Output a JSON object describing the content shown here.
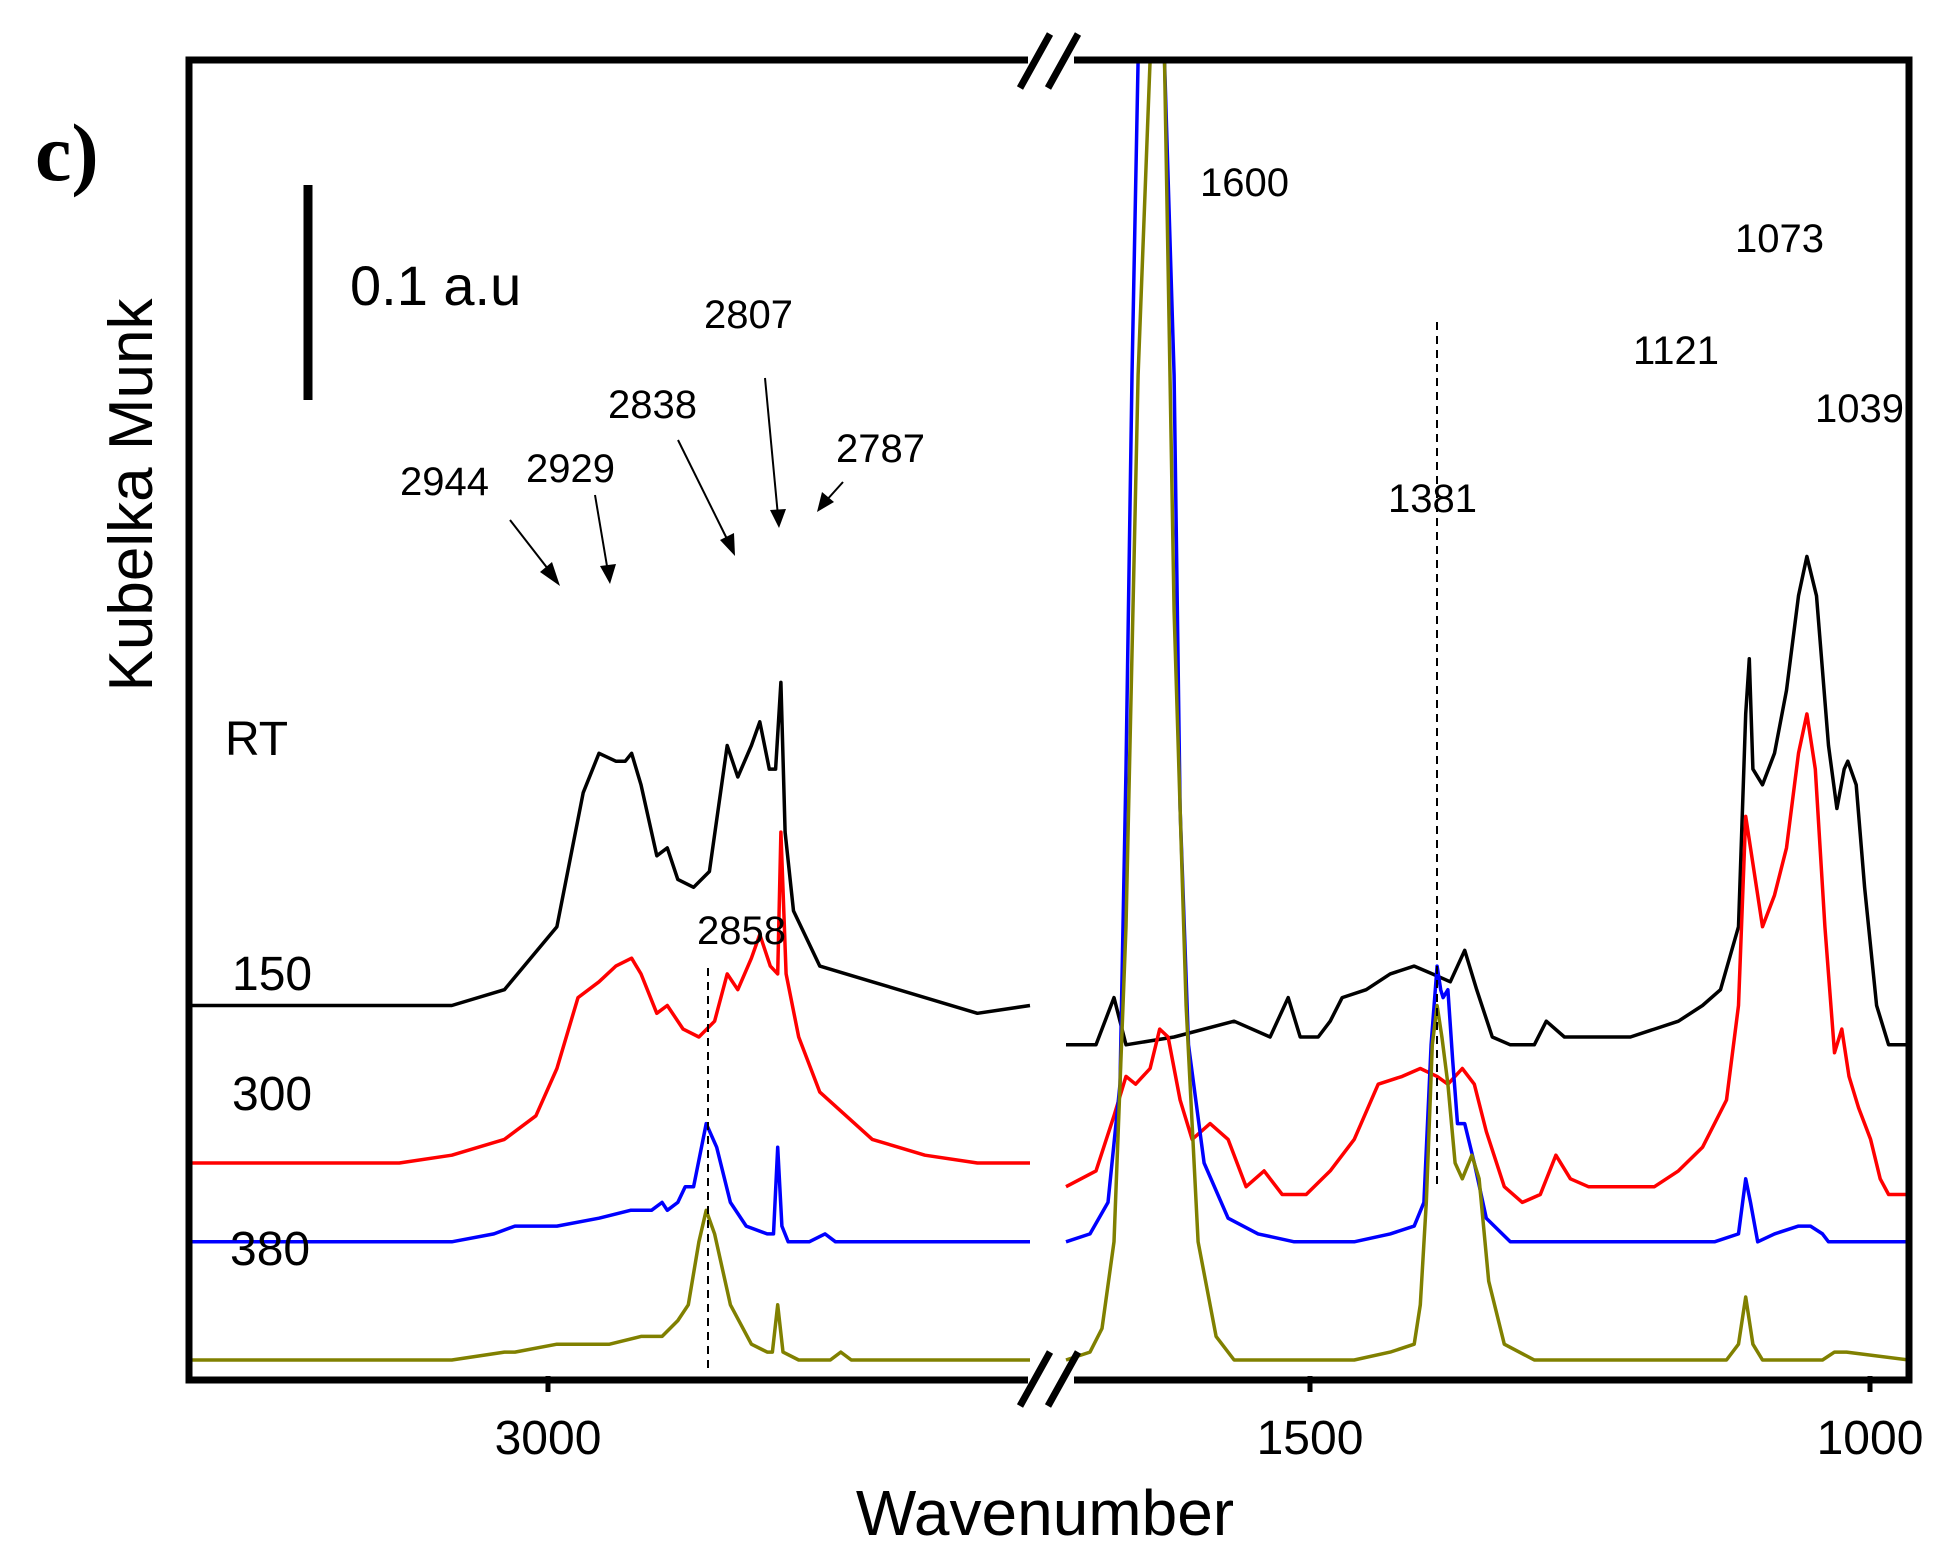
{
  "chart_data": {
    "type": "line",
    "panel_label": "c)",
    "xlabel": "Wavenumber",
    "ylabel": "Kubelka Munk",
    "scale_bar_label": "0.1 a.u",
    "x_tick_labels": [
      "3000",
      "1500",
      "1000"
    ],
    "x_ranges": {
      "left": [
        3350,
        2550
      ],
      "right": [
        1690,
        988
      ]
    },
    "y_range": [
      -0.45,
      1.2
    ],
    "axis_break": true,
    "series": [
      {
        "name": "RT",
        "color": "#000000",
        "baseline": 0.0,
        "left": [
          [
            3350,
            0
          ],
          [
            3100,
            0
          ],
          [
            3050,
            0.02
          ],
          [
            3000,
            0.1
          ],
          [
            2975,
            0.27
          ],
          [
            2960,
            0.32
          ],
          [
            2944,
            0.31
          ],
          [
            2935,
            0.31
          ],
          [
            2929,
            0.32
          ],
          [
            2920,
            0.28
          ],
          [
            2905,
            0.19
          ],
          [
            2895,
            0.2
          ],
          [
            2885,
            0.16
          ],
          [
            2870,
            0.15
          ],
          [
            2855,
            0.17
          ],
          [
            2838,
            0.33
          ],
          [
            2828,
            0.29
          ],
          [
            2815,
            0.33
          ],
          [
            2807,
            0.36
          ],
          [
            2798,
            0.3
          ],
          [
            2792,
            0.3
          ],
          [
            2787,
            0.41
          ],
          [
            2783,
            0.22
          ],
          [
            2775,
            0.12
          ],
          [
            2750,
            0.05
          ],
          [
            2700,
            0.03
          ],
          [
            2600,
            -0.01
          ],
          [
            2550,
            0
          ]
        ],
        "right": [
          [
            1690,
            -0.05
          ],
          [
            1665,
            -0.05
          ],
          [
            1650,
            0.01
          ],
          [
            1640,
            -0.05
          ],
          [
            1600,
            -0.04
          ],
          [
            1550,
            -0.02
          ],
          [
            1520,
            -0.04
          ],
          [
            1505,
            0.01
          ],
          [
            1495,
            -0.04
          ],
          [
            1480,
            -0.04
          ],
          [
            1470,
            -0.02
          ],
          [
            1460,
            0.01
          ],
          [
            1440,
            0.02
          ],
          [
            1420,
            0.04
          ],
          [
            1400,
            0.05
          ],
          [
            1385,
            0.04
          ],
          [
            1370,
            0.03
          ],
          [
            1358,
            0.07
          ],
          [
            1348,
            0.02
          ],
          [
            1335,
            -0.04
          ],
          [
            1320,
            -0.05
          ],
          [
            1300,
            -0.05
          ],
          [
            1290,
            -0.02
          ],
          [
            1275,
            -0.04
          ],
          [
            1250,
            -0.04
          ],
          [
            1220,
            -0.04
          ],
          [
            1200,
            -0.03
          ],
          [
            1180,
            -0.02
          ],
          [
            1160,
            0.0
          ],
          [
            1145,
            0.02
          ],
          [
            1130,
            0.1
          ],
          [
            1124,
            0.37
          ],
          [
            1121,
            0.44
          ],
          [
            1118,
            0.3
          ],
          [
            1110,
            0.28
          ],
          [
            1100,
            0.32
          ],
          [
            1090,
            0.4
          ],
          [
            1080,
            0.52
          ],
          [
            1073,
            0.57
          ],
          [
            1065,
            0.52
          ],
          [
            1055,
            0.33
          ],
          [
            1048,
            0.25
          ],
          [
            1042,
            0.3
          ],
          [
            1039,
            0.31
          ],
          [
            1032,
            0.28
          ],
          [
            1025,
            0.15
          ],
          [
            1015,
            0.0
          ],
          [
            1005,
            -0.05
          ],
          [
            988,
            -0.05
          ]
        ]
      },
      {
        "name": "150",
        "color": "#ff0000",
        "baseline": -0.2,
        "left": [
          [
            3350,
            -0.2
          ],
          [
            3150,
            -0.2
          ],
          [
            3100,
            -0.19
          ],
          [
            3050,
            -0.17
          ],
          [
            3020,
            -0.14
          ],
          [
            3000,
            -0.08
          ],
          [
            2980,
            0.01
          ],
          [
            2960,
            0.03
          ],
          [
            2944,
            0.05
          ],
          [
            2929,
            0.06
          ],
          [
            2920,
            0.04
          ],
          [
            2905,
            -0.01
          ],
          [
            2895,
            0.0
          ],
          [
            2880,
            -0.03
          ],
          [
            2865,
            -0.04
          ],
          [
            2850,
            -0.02
          ],
          [
            2838,
            0.04
          ],
          [
            2828,
            0.02
          ],
          [
            2815,
            0.06
          ],
          [
            2807,
            0.09
          ],
          [
            2797,
            0.05
          ],
          [
            2790,
            0.04
          ],
          [
            2787,
            0.22
          ],
          [
            2782,
            0.04
          ],
          [
            2770,
            -0.04
          ],
          [
            2750,
            -0.11
          ],
          [
            2700,
            -0.17
          ],
          [
            2650,
            -0.19
          ],
          [
            2600,
            -0.2
          ],
          [
            2550,
            -0.2
          ]
        ],
        "right": [
          [
            1690,
            -0.23
          ],
          [
            1665,
            -0.21
          ],
          [
            1650,
            -0.14
          ],
          [
            1640,
            -0.09
          ],
          [
            1632,
            -0.1
          ],
          [
            1620,
            -0.08
          ],
          [
            1612,
            -0.03
          ],
          [
            1605,
            -0.04
          ],
          [
            1595,
            -0.12
          ],
          [
            1585,
            -0.17
          ],
          [
            1570,
            -0.15
          ],
          [
            1555,
            -0.17
          ],
          [
            1540,
            -0.23
          ],
          [
            1525,
            -0.21
          ],
          [
            1510,
            -0.24
          ],
          [
            1490,
            -0.24
          ],
          [
            1470,
            -0.21
          ],
          [
            1450,
            -0.17
          ],
          [
            1430,
            -0.1
          ],
          [
            1410,
            -0.09
          ],
          [
            1395,
            -0.08
          ],
          [
            1381,
            -0.09
          ],
          [
            1372,
            -0.1
          ],
          [
            1360,
            -0.08
          ],
          [
            1350,
            -0.1
          ],
          [
            1340,
            -0.16
          ],
          [
            1325,
            -0.23
          ],
          [
            1310,
            -0.25
          ],
          [
            1295,
            -0.24
          ],
          [
            1282,
            -0.19
          ],
          [
            1270,
            -0.22
          ],
          [
            1255,
            -0.23
          ],
          [
            1230,
            -0.23
          ],
          [
            1200,
            -0.23
          ],
          [
            1180,
            -0.21
          ],
          [
            1160,
            -0.18
          ],
          [
            1140,
            -0.12
          ],
          [
            1130,
            0.0
          ],
          [
            1124,
            0.24
          ],
          [
            1120,
            0.2
          ],
          [
            1110,
            0.1
          ],
          [
            1100,
            0.14
          ],
          [
            1090,
            0.2
          ],
          [
            1080,
            0.32
          ],
          [
            1073,
            0.37
          ],
          [
            1066,
            0.3
          ],
          [
            1058,
            0.1
          ],
          [
            1050,
            -0.06
          ],
          [
            1044,
            -0.03
          ],
          [
            1038,
            -0.09
          ],
          [
            1030,
            -0.13
          ],
          [
            1020,
            -0.17
          ],
          [
            1012,
            -0.22
          ],
          [
            1005,
            -0.24
          ],
          [
            988,
            -0.24
          ]
        ]
      },
      {
        "name": "300",
        "color": "#0000ff",
        "baseline": -0.3,
        "left": [
          [
            3350,
            -0.3
          ],
          [
            3100,
            -0.3
          ],
          [
            3060,
            -0.29
          ],
          [
            3040,
            -0.28
          ],
          [
            3000,
            -0.28
          ],
          [
            2960,
            -0.27
          ],
          [
            2930,
            -0.26
          ],
          [
            2910,
            -0.26
          ],
          [
            2900,
            -0.25
          ],
          [
            2895,
            -0.26
          ],
          [
            2885,
            -0.25
          ],
          [
            2878,
            -0.23
          ],
          [
            2870,
            -0.23
          ],
          [
            2858,
            -0.15
          ],
          [
            2848,
            -0.18
          ],
          [
            2835,
            -0.25
          ],
          [
            2820,
            -0.28
          ],
          [
            2800,
            -0.29
          ],
          [
            2794,
            -0.29
          ],
          [
            2790,
            -0.18
          ],
          [
            2786,
            -0.28
          ],
          [
            2780,
            -0.3
          ],
          [
            2760,
            -0.3
          ],
          [
            2745,
            -0.29
          ],
          [
            2735,
            -0.3
          ],
          [
            2700,
            -0.3
          ],
          [
            2550,
            -0.3
          ]
        ],
        "right": [
          [
            1690,
            -0.3
          ],
          [
            1670,
            -0.29
          ],
          [
            1655,
            -0.25
          ],
          [
            1645,
            -0.1
          ],
          [
            1640,
            0.3
          ],
          [
            1635,
            0.8
          ],
          [
            1630,
            1.2
          ],
          [
            1608,
            1.2
          ],
          [
            1600,
            0.8
          ],
          [
            1595,
            0.25
          ],
          [
            1588,
            -0.05
          ],
          [
            1575,
            -0.2
          ],
          [
            1555,
            -0.27
          ],
          [
            1530,
            -0.29
          ],
          [
            1500,
            -0.3
          ],
          [
            1450,
            -0.3
          ],
          [
            1420,
            -0.29
          ],
          [
            1400,
            -0.28
          ],
          [
            1392,
            -0.25
          ],
          [
            1386,
            -0.05
          ],
          [
            1381,
            0.05
          ],
          [
            1378,
            0.02
          ],
          [
            1376,
            0.01
          ],
          [
            1372,
            0.02
          ],
          [
            1368,
            -0.07
          ],
          [
            1364,
            -0.15
          ],
          [
            1358,
            -0.15
          ],
          [
            1350,
            -0.2
          ],
          [
            1340,
            -0.27
          ],
          [
            1320,
            -0.3
          ],
          [
            1200,
            -0.3
          ],
          [
            1150,
            -0.3
          ],
          [
            1130,
            -0.29
          ],
          [
            1124,
            -0.22
          ],
          [
            1120,
            -0.25
          ],
          [
            1114,
            -0.3
          ],
          [
            1100,
            -0.29
          ],
          [
            1080,
            -0.28
          ],
          [
            1070,
            -0.28
          ],
          [
            1060,
            -0.29
          ],
          [
            1055,
            -0.3
          ],
          [
            988,
            -0.3
          ]
        ]
      },
      {
        "name": "380",
        "color": "#808000",
        "baseline": -0.45,
        "left": [
          [
            3350,
            -0.45
          ],
          [
            3100,
            -0.45
          ],
          [
            3050,
            -0.44
          ],
          [
            3040,
            -0.44
          ],
          [
            3000,
            -0.43
          ],
          [
            2950,
            -0.43
          ],
          [
            2920,
            -0.42
          ],
          [
            2900,
            -0.42
          ],
          [
            2885,
            -0.4
          ],
          [
            2875,
            -0.38
          ],
          [
            2865,
            -0.3
          ],
          [
            2858,
            -0.26
          ],
          [
            2850,
            -0.29
          ],
          [
            2835,
            -0.38
          ],
          [
            2815,
            -0.43
          ],
          [
            2800,
            -0.44
          ],
          [
            2795,
            -0.44
          ],
          [
            2790,
            -0.38
          ],
          [
            2785,
            -0.44
          ],
          [
            2770,
            -0.45
          ],
          [
            2740,
            -0.45
          ],
          [
            2730,
            -0.44
          ],
          [
            2720,
            -0.45
          ],
          [
            2550,
            -0.45
          ]
        ],
        "right": [
          [
            1690,
            -0.45
          ],
          [
            1670,
            -0.44
          ],
          [
            1660,
            -0.41
          ],
          [
            1650,
            -0.3
          ],
          [
            1640,
            0.1
          ],
          [
            1630,
            0.8
          ],
          [
            1620,
            1.2
          ],
          [
            1608,
            1.2
          ],
          [
            1600,
            0.5
          ],
          [
            1590,
            0.0
          ],
          [
            1580,
            -0.3
          ],
          [
            1565,
            -0.42
          ],
          [
            1550,
            -0.45
          ],
          [
            1450,
            -0.45
          ],
          [
            1420,
            -0.44
          ],
          [
            1400,
            -0.43
          ],
          [
            1395,
            -0.38
          ],
          [
            1390,
            -0.25
          ],
          [
            1385,
            -0.05
          ],
          [
            1381,
            0.0
          ],
          [
            1377,
            -0.04
          ],
          [
            1372,
            -0.1
          ],
          [
            1366,
            -0.2
          ],
          [
            1360,
            -0.22
          ],
          [
            1352,
            -0.19
          ],
          [
            1346,
            -0.22
          ],
          [
            1338,
            -0.35
          ],
          [
            1325,
            -0.43
          ],
          [
            1300,
            -0.45
          ],
          [
            1200,
            -0.45
          ],
          [
            1140,
            -0.45
          ],
          [
            1130,
            -0.43
          ],
          [
            1124,
            -0.37
          ],
          [
            1118,
            -0.43
          ],
          [
            1110,
            -0.45
          ],
          [
            1060,
            -0.45
          ],
          [
            1050,
            -0.44
          ],
          [
            1040,
            -0.44
          ],
          [
            988,
            -0.45
          ]
        ]
      }
    ],
    "annotations": [
      {
        "text": "2944",
        "color": "#000000"
      },
      {
        "text": "2929",
        "color": "#ff0000"
      },
      {
        "text": "2838",
        "color": "#000000"
      },
      {
        "text": "2807",
        "color": "#ff0000"
      },
      {
        "text": "2787",
        "color": "#000000"
      },
      {
        "text": "2858",
        "color": "#0000ff"
      },
      {
        "text": "1600",
        "color": "#000000"
      },
      {
        "text": "1381",
        "color": "#000000"
      },
      {
        "text": "1121",
        "color": "#000000"
      },
      {
        "text": "1073",
        "color": "#ff0000"
      },
      {
        "text": "1039",
        "color": "#000000"
      }
    ]
  }
}
